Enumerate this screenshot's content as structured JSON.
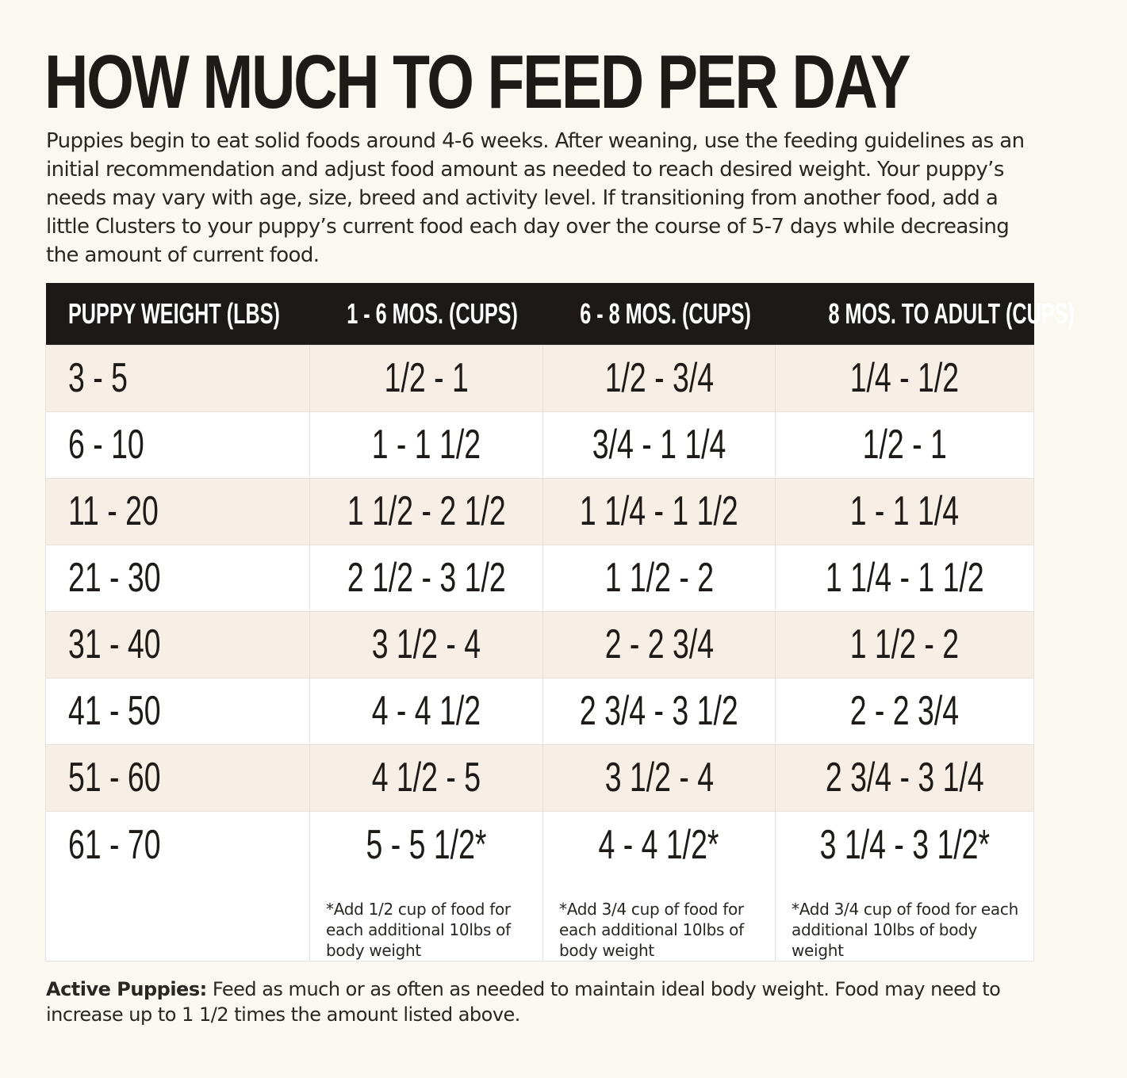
{
  "title": "HOW MUCH TO FEED PER DAY",
  "intro": "Puppies begin to eat solid foods around 4-6 weeks. After weaning, use the feeding guidelines as an initial recommendation and adjust food amount as needed to reach desired weight. Your puppy’s needs may vary with age, size, breed and activity level. If transitioning from another food, add a little Clusters to your puppy’s current food each day over the course of 5-7 days while decreasing the amount of current food.",
  "table": {
    "headers": [
      "PUPPY WEIGHT (LBS)",
      "1 - 6 MOS. (CUPS)",
      "6 - 8 MOS. (CUPS)",
      "8 MOS. TO ADULT (CUPS)"
    ],
    "rows": [
      [
        "3 - 5",
        "1/2 - 1",
        "1/2 - 3/4",
        "1/4 - 1/2"
      ],
      [
        "6 - 10",
        "1 - 1 1/2",
        "3/4 - 1 1/4",
        "1/2 - 1"
      ],
      [
        "11 - 20",
        "1 1/2 - 2 1/2",
        "1 1/4 - 1 1/2",
        "1 - 1 1/4"
      ],
      [
        "21 - 30",
        "2 1/2 - 3 1/2",
        "1 1/2 - 2",
        "1 1/4 - 1 1/2"
      ],
      [
        "31 - 40",
        "3 1/2 - 4",
        "2 - 2 3/4",
        "1 1/2 - 2"
      ],
      [
        "41 - 50",
        "4 - 4 1/2",
        "2 3/4 - 3 1/2",
        "2 - 2 3/4"
      ],
      [
        "51 - 60",
        "4 1/2 - 5",
        "3 1/2 - 4",
        "2 3/4 - 3 1/4"
      ],
      [
        "61 - 70",
        "5 - 5 1/2*",
        "4 - 4 1/2*",
        "3 1/4 - 3 1/2*"
      ]
    ],
    "notes": [
      "*Add 1/2 cup of food for each additional 10lbs of body weight",
      "*Add 3/4 cup of food for each additional 10lbs of body weight",
      "*Add 3/4 cup of food for each additional 10lbs of body weight"
    ]
  },
  "footer": {
    "label": "Active Puppies:",
    "text": " Feed as much or as often as needed to maintain ideal body weight. Food may need to increase up to 1 1/2 times the amount listed above."
  },
  "colors": {
    "background": "#fbf8f2",
    "header_bg": "#1d1918",
    "stripe": "#f7efe6",
    "text": "#1e1a18"
  }
}
